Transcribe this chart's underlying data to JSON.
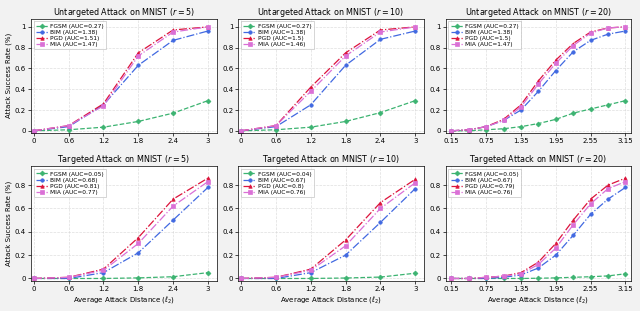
{
  "subplots": [
    {
      "title": "Untargeted Attack on MNIST ($r = 5$)",
      "row": 0,
      "col": 0,
      "x": [
        0.0,
        0.6,
        1.2,
        1.8,
        2.4,
        3.0
      ],
      "xlim": [
        -0.05,
        3.15
      ],
      "xticks": [
        0.0,
        0.6,
        1.2,
        1.8,
        2.4,
        3.0
      ],
      "ylim": [
        -0.02,
        1.08
      ],
      "yticks": [
        0.0,
        0.2,
        0.4,
        0.6,
        0.8,
        1.0
      ],
      "series": {
        "FGSM": {
          "auc": "0.27",
          "y": [
            0.0,
            0.01,
            0.035,
            0.09,
            0.17,
            0.29
          ]
        },
        "BIM": {
          "auc": "1.38",
          "y": [
            0.0,
            0.04,
            0.25,
            0.63,
            0.87,
            0.96
          ]
        },
        "PGD": {
          "auc": "1.51",
          "y": [
            0.0,
            0.05,
            0.26,
            0.75,
            0.97,
            1.0
          ]
        },
        "MIA": {
          "auc": "1.47",
          "y": [
            0.0,
            0.05,
            0.24,
            0.72,
            0.95,
            1.0
          ]
        }
      }
    },
    {
      "title": "Untargeted Attack on MNIST ($r = 10$)",
      "row": 0,
      "col": 1,
      "x": [
        0.0,
        0.6,
        1.2,
        1.8,
        2.4,
        3.0
      ],
      "xlim": [
        -0.05,
        3.15
      ],
      "xticks": [
        0.0,
        0.6,
        1.2,
        1.8,
        2.4,
        3.0
      ],
      "ylim": [
        -0.02,
        1.08
      ],
      "yticks": [
        0.0,
        0.2,
        0.4,
        0.6,
        0.8,
        1.0
      ],
      "series": {
        "FGSM": {
          "auc": "0.27",
          "y": [
            0.0,
            0.01,
            0.035,
            0.09,
            0.175,
            0.29
          ]
        },
        "BIM": {
          "auc": "1.38",
          "y": [
            0.0,
            0.04,
            0.25,
            0.63,
            0.88,
            0.96
          ]
        },
        "PGD": {
          "auc": "1.5",
          "y": [
            0.0,
            0.05,
            0.42,
            0.75,
            0.97,
            1.0
          ]
        },
        "MIA": {
          "auc": "1.46",
          "y": [
            0.0,
            0.05,
            0.38,
            0.72,
            0.95,
            1.0
          ]
        }
      }
    },
    {
      "title": "Untargeted Attack on MNIST ($r = 20$)",
      "row": 0,
      "col": 2,
      "x": [
        0.15,
        0.45,
        0.75,
        1.05,
        1.35,
        1.65,
        1.95,
        2.25,
        2.55,
        2.85,
        3.15
      ],
      "xlim": [
        0.05,
        3.25
      ],
      "xticks": [
        0.15,
        0.75,
        1.35,
        1.95,
        2.55,
        3.15
      ],
      "ylim": [
        -0.02,
        1.08
      ],
      "yticks": [
        0.0,
        0.2,
        0.4,
        0.6,
        0.8,
        1.0
      ],
      "series": {
        "FGSM": {
          "auc": "0.27",
          "y": [
            0.0,
            0.0,
            0.01,
            0.02,
            0.04,
            0.07,
            0.11,
            0.17,
            0.21,
            0.25,
            0.29
          ]
        },
        "BIM": {
          "auc": "1.38",
          "y": [
            0.0,
            0.01,
            0.04,
            0.1,
            0.2,
            0.38,
            0.58,
            0.76,
            0.87,
            0.93,
            0.96
          ]
        },
        "PGD": {
          "auc": "1.5",
          "y": [
            0.0,
            0.01,
            0.04,
            0.11,
            0.25,
            0.48,
            0.68,
            0.84,
            0.95,
            0.99,
            1.0
          ]
        },
        "MIA": {
          "auc": "1.47",
          "y": [
            0.0,
            0.01,
            0.04,
            0.1,
            0.23,
            0.45,
            0.65,
            0.82,
            0.94,
            0.99,
            1.0
          ]
        }
      }
    },
    {
      "title": "Targeted Attack on MNIST ($r = 5$)",
      "row": 1,
      "col": 0,
      "x": [
        0.0,
        0.6,
        1.2,
        1.8,
        2.4,
        3.0
      ],
      "xlim": [
        -0.05,
        3.15
      ],
      "xticks": [
        0.0,
        0.6,
        1.2,
        1.8,
        2.4,
        3.0
      ],
      "ylim": [
        -0.02,
        0.96
      ],
      "yticks": [
        0.0,
        0.2,
        0.4,
        0.6,
        0.8
      ],
      "series": {
        "FGSM": {
          "auc": "0.05",
          "y": [
            0.0,
            0.0,
            0.0,
            0.005,
            0.015,
            0.05
          ]
        },
        "BIM": {
          "auc": "0.68",
          "y": [
            0.0,
            0.0,
            0.05,
            0.22,
            0.5,
            0.78
          ]
        },
        "PGD": {
          "auc": "0.81",
          "y": [
            0.0,
            0.01,
            0.08,
            0.35,
            0.68,
            0.86
          ]
        },
        "MIA": {
          "auc": "0.77",
          "y": [
            0.0,
            0.01,
            0.07,
            0.3,
            0.62,
            0.83
          ]
        }
      }
    },
    {
      "title": "Targeted Attack on MNIST ($r = 10$)",
      "row": 1,
      "col": 1,
      "x": [
        0.0,
        0.6,
        1.2,
        1.8,
        2.4,
        3.0
      ],
      "xlim": [
        -0.05,
        3.15
      ],
      "xticks": [
        0.0,
        0.6,
        1.2,
        1.8,
        2.4,
        3.0
      ],
      "ylim": [
        -0.02,
        0.96
      ],
      "yticks": [
        0.0,
        0.2,
        0.4,
        0.6,
        0.8
      ],
      "series": {
        "FGSM": {
          "auc": "0.04",
          "y": [
            0.0,
            0.0,
            0.0,
            0.004,
            0.012,
            0.045
          ]
        },
        "BIM": {
          "auc": "0.67",
          "y": [
            0.0,
            0.0,
            0.05,
            0.2,
            0.48,
            0.77
          ]
        },
        "PGD": {
          "auc": "0.8",
          "y": [
            0.0,
            0.01,
            0.08,
            0.33,
            0.65,
            0.85
          ]
        },
        "MIA": {
          "auc": "0.76",
          "y": [
            0.0,
            0.01,
            0.07,
            0.28,
            0.6,
            0.82
          ]
        }
      }
    },
    {
      "title": "Targeted Attack on MNIST ($r = 20$)",
      "row": 1,
      "col": 2,
      "x": [
        0.15,
        0.45,
        0.75,
        1.05,
        1.35,
        1.65,
        1.95,
        2.25,
        2.55,
        2.85,
        3.15
      ],
      "xlim": [
        0.05,
        3.25
      ],
      "xticks": [
        0.15,
        0.75,
        1.35,
        1.95,
        2.55,
        3.15
      ],
      "ylim": [
        -0.02,
        0.96
      ],
      "yticks": [
        0.0,
        0.2,
        0.4,
        0.6,
        0.8
      ],
      "series": {
        "FGSM": {
          "auc": "0.05",
          "y": [
            0.0,
            0.0,
            0.0,
            0.0,
            0.0,
            0.002,
            0.005,
            0.01,
            0.015,
            0.022,
            0.04
          ]
        },
        "BIM": {
          "auc": "0.67",
          "y": [
            0.0,
            0.0,
            0.0,
            0.01,
            0.03,
            0.09,
            0.2,
            0.37,
            0.55,
            0.68,
            0.78
          ]
        },
        "PGD": {
          "auc": "0.79",
          "y": [
            0.0,
            0.0,
            0.01,
            0.02,
            0.05,
            0.14,
            0.3,
            0.5,
            0.68,
            0.8,
            0.86
          ]
        },
        "MIA": {
          "auc": "0.76",
          "y": [
            0.0,
            0.0,
            0.01,
            0.02,
            0.04,
            0.12,
            0.26,
            0.46,
            0.64,
            0.77,
            0.83
          ]
        }
      }
    }
  ],
  "colors": {
    "FGSM": "#3cb371",
    "BIM": "#4169e1",
    "PGD": "#dc143c",
    "MIA": "#da70d6"
  },
  "markers": {
    "FGSM": "D",
    "BIM": "o",
    "PGD": "^",
    "MIA": "s"
  },
  "method_order": [
    "FGSM",
    "BIM",
    "PGD",
    "MIA"
  ],
  "ylabel": "Attack Success Rate (%)",
  "xlabel": "Average Attack Distance ($\\ell_2$)",
  "background_color": "#ffffff",
  "grid_color": "#d0d0d0",
  "figure_bg": "#f2f2f2"
}
